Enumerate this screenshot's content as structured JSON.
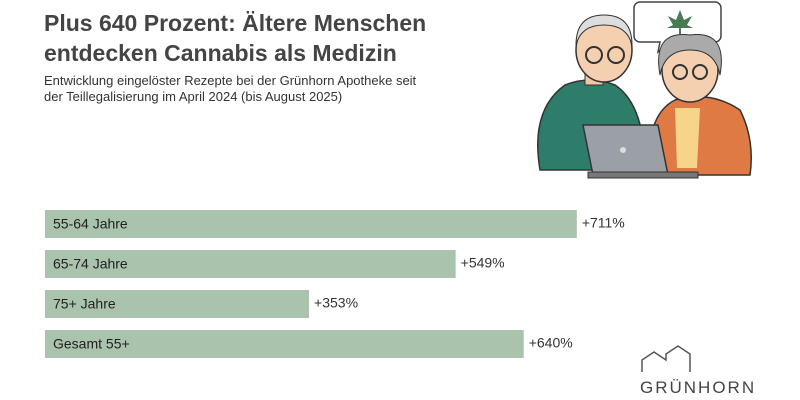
{
  "chart_data": {
    "type": "bar",
    "orientation": "horizontal",
    "title": "Plus 640 Prozent: Ältere Menschen entdecken Cannabis als Medizin",
    "subtitle": "Entwicklung eingelöster Rezepte bei der Grünhorn Apotheke seit der Teillegalisierung im April 2024 (bis August 2025)",
    "categories": [
      "55-64 Jahre",
      "65-74 Jahre",
      "75+ Jahre",
      "Gesamt 55+"
    ],
    "values": [
      711,
      549,
      353,
      640
    ],
    "value_labels": [
      "+711%",
      "+549%",
      "+353%",
      "+640%"
    ],
    "color": "#a9c3ad"
  },
  "logo": "GRÜNHORN"
}
